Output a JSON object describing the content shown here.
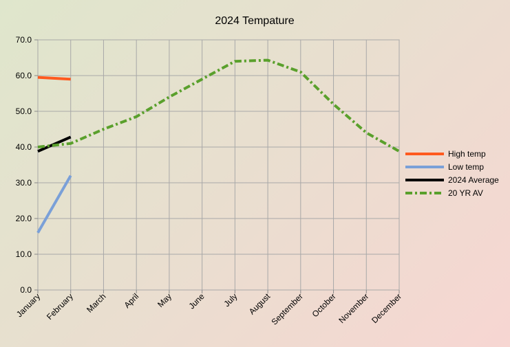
{
  "chart_data": {
    "type": "line",
    "title": "2024 Tempature",
    "xlabel": "",
    "ylabel": "",
    "ylim": [
      0,
      70
    ],
    "y_ticks": [
      "0.0",
      "10.0",
      "20.0",
      "30.0",
      "40.0",
      "50.0",
      "60.0",
      "70.0"
    ],
    "categories": [
      "January",
      "February",
      "March",
      "April",
      "May",
      "June",
      "July",
      "August",
      "September",
      "October",
      "November",
      "December"
    ],
    "grid": true,
    "legend_position": "right",
    "series": [
      {
        "name": "High temp",
        "color": "#ff5a1f",
        "style": "solid",
        "width": 4,
        "values": [
          59.5,
          59.0,
          null,
          null,
          null,
          null,
          null,
          null,
          null,
          null,
          null,
          null
        ]
      },
      {
        "name": "Low temp",
        "color": "#7aa0d8",
        "style": "solid",
        "width": 4,
        "values": [
          16.0,
          32.0,
          null,
          null,
          null,
          null,
          null,
          null,
          null,
          null,
          null,
          null
        ]
      },
      {
        "name": "2024 Average",
        "color": "#000000",
        "style": "solid",
        "width": 4,
        "values": [
          38.8,
          42.8,
          null,
          null,
          null,
          null,
          null,
          null,
          null,
          null,
          null,
          null
        ]
      },
      {
        "name": "20 YR AV",
        "color": "#5aa02c",
        "style": "dashdot",
        "width": 4,
        "values": [
          40.0,
          41.0,
          45.0,
          48.5,
          54.0,
          59.0,
          64.0,
          64.3,
          61.0,
          52.0,
          44.0,
          38.8
        ]
      }
    ]
  }
}
